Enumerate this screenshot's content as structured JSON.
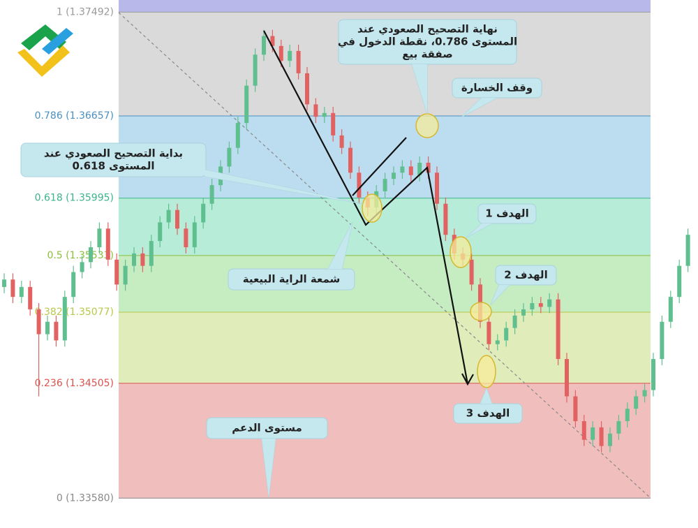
{
  "chart_data": {
    "type": "candlestick",
    "ylim": [
      1.3334,
      1.3759
    ],
    "yticks": [
      {
        "value": 1.37492,
        "label": "1 (1.37492)"
      },
      {
        "value": 1.36657,
        "label": "0.786 (1.36657)"
      },
      {
        "value": 1.35995,
        "label": "0.618 (1.35995)"
      },
      {
        "value": 1.35533,
        "label": "0.5 (1.35533)"
      },
      {
        "value": 1.35077,
        "label": "0.382 (1.35077)"
      },
      {
        "value": 1.34505,
        "label": "0.236 (1.34505)"
      },
      {
        "value": 1.3358,
        "label": "0 (1.33580)"
      }
    ],
    "tick_colors": [
      "#9a9a9a",
      "#4a90c0",
      "#3cb38a",
      "#8bbf3a",
      "#b8c84a",
      "#d9534f",
      "#888888"
    ],
    "zone_colors": [
      "#b8b8ea",
      "#dadada",
      "#bcdcef",
      "#b6ecd8",
      "#c6ecc2",
      "#e1ecbb",
      "#f1bebe"
    ],
    "up_color": "#5fbf8f",
    "down_color": "#e26262",
    "open": [
      1.3528,
      1.3534,
      1.352,
      1.3528,
      1.351,
      1.349,
      1.35,
      1.3485,
      1.352,
      1.354,
      1.3548,
      1.356,
      1.3575,
      1.355,
      1.353,
      1.3545,
      1.3555,
      1.3545,
      1.3565,
      1.358,
      1.359,
      1.3575,
      1.356,
      1.358,
      1.3595,
      1.361,
      1.3625,
      1.364,
      1.366,
      1.369,
      1.3715,
      1.373,
      1.3722,
      1.371,
      1.3718,
      1.37,
      1.3675,
      1.3665,
      1.3668,
      1.365,
      1.364,
      1.362,
      1.36,
      1.3592,
      1.3605,
      1.3615,
      1.362,
      1.3625,
      1.3618,
      1.3628,
      1.362,
      1.3595,
      1.357,
      1.3555,
      1.355,
      1.353,
      1.35,
      1.3482,
      1.3485,
      1.3495,
      1.3505,
      1.351,
      1.3515,
      1.3512,
      1.3518,
      1.347,
      1.344,
      1.342,
      1.3405,
      1.3415,
      1.34,
      1.341,
      1.342,
      1.343,
      1.344,
      1.3445,
      1.347,
      1.35,
      1.352,
      1.3545
    ],
    "high": [
      1.3539,
      1.3539,
      1.3533,
      1.3533,
      1.3515,
      1.3505,
      1.3505,
      1.3525,
      1.3545,
      1.3553,
      1.3565,
      1.358,
      1.358,
      1.3555,
      1.355,
      1.356,
      1.356,
      1.357,
      1.3585,
      1.3595,
      1.3595,
      1.358,
      1.3585,
      1.36,
      1.3615,
      1.363,
      1.3645,
      1.3665,
      1.3695,
      1.372,
      1.3735,
      1.3735,
      1.3727,
      1.3723,
      1.3723,
      1.3705,
      1.368,
      1.3673,
      1.3673,
      1.3655,
      1.3645,
      1.3625,
      1.3605,
      1.361,
      1.362,
      1.3625,
      1.363,
      1.363,
      1.3633,
      1.3633,
      1.3625,
      1.36,
      1.3575,
      1.356,
      1.3555,
      1.3535,
      1.3505,
      1.349,
      1.35,
      1.351,
      1.3515,
      1.352,
      1.352,
      1.3523,
      1.3523,
      1.3475,
      1.3445,
      1.3425,
      1.342,
      1.342,
      1.3415,
      1.3425,
      1.3435,
      1.3445,
      1.345,
      1.3475,
      1.3505,
      1.3525,
      1.355,
      1.3575
    ],
    "low": [
      1.3523,
      1.3515,
      1.3515,
      1.3505,
      1.344,
      1.3485,
      1.348,
      1.348,
      1.3515,
      1.3535,
      1.3543,
      1.3555,
      1.3545,
      1.3525,
      1.3525,
      1.354,
      1.354,
      1.354,
      1.356,
      1.3575,
      1.357,
      1.3555,
      1.3555,
      1.3575,
      1.359,
      1.3605,
      1.362,
      1.3635,
      1.3655,
      1.3685,
      1.371,
      1.3717,
      1.3705,
      1.3705,
      1.3695,
      1.367,
      1.366,
      1.366,
      1.3645,
      1.3635,
      1.3615,
      1.3595,
      1.3585,
      1.3587,
      1.36,
      1.361,
      1.3615,
      1.3613,
      1.3613,
      1.3615,
      1.359,
      1.3565,
      1.355,
      1.3545,
      1.3525,
      1.3495,
      1.3477,
      1.3477,
      1.348,
      1.349,
      1.35,
      1.3505,
      1.3507,
      1.3507,
      1.3465,
      1.3435,
      1.3415,
      1.34,
      1.34,
      1.3395,
      1.3395,
      1.3405,
      1.3415,
      1.3425,
      1.3435,
      1.344,
      1.3465,
      1.3495,
      1.3515,
      1.354
    ],
    "close": [
      1.3534,
      1.352,
      1.3528,
      1.351,
      1.349,
      1.35,
      1.3485,
      1.352,
      1.354,
      1.3548,
      1.356,
      1.3575,
      1.355,
      1.353,
      1.3545,
      1.3555,
      1.3545,
      1.3565,
      1.358,
      1.359,
      1.3575,
      1.356,
      1.358,
      1.3595,
      1.361,
      1.3625,
      1.364,
      1.366,
      1.369,
      1.3715,
      1.373,
      1.3722,
      1.371,
      1.3718,
      1.37,
      1.3675,
      1.3665,
      1.3668,
      1.365,
      1.364,
      1.362,
      1.36,
      1.3592,
      1.3605,
      1.3615,
      1.362,
      1.3625,
      1.3618,
      1.3628,
      1.362,
      1.3595,
      1.357,
      1.3555,
      1.355,
      1.353,
      1.35,
      1.3482,
      1.3485,
      1.3495,
      1.3505,
      1.351,
      1.3515,
      1.3512,
      1.3518,
      1.347,
      1.344,
      1.342,
      1.3405,
      1.3415,
      1.34,
      1.341,
      1.342,
      1.343,
      1.344,
      1.3445,
      1.347,
      1.35,
      1.352,
      1.3545,
      1.357
    ],
    "annotations": [
      {
        "lines": [
          "نهاية التصحيح الصعودي عند",
          "المستوى 0.786، نقطة الدخول في",
          "صفقة بيع"
        ]
      },
      {
        "lines": [
          "وقف الخسارة"
        ]
      },
      {
        "lines": [
          "بداية التصحيح الصعودي عند",
          "المستوى 0.618"
        ]
      },
      {
        "lines": [
          "شمعة الراية البيعية"
        ]
      },
      {
        "lines": [
          "الهدف 1"
        ]
      },
      {
        "lines": [
          "الهدف 2"
        ]
      },
      {
        "lines": [
          "الهدف 3"
        ]
      },
      {
        "lines": [
          "مستوى الدعم"
        ]
      }
    ]
  }
}
